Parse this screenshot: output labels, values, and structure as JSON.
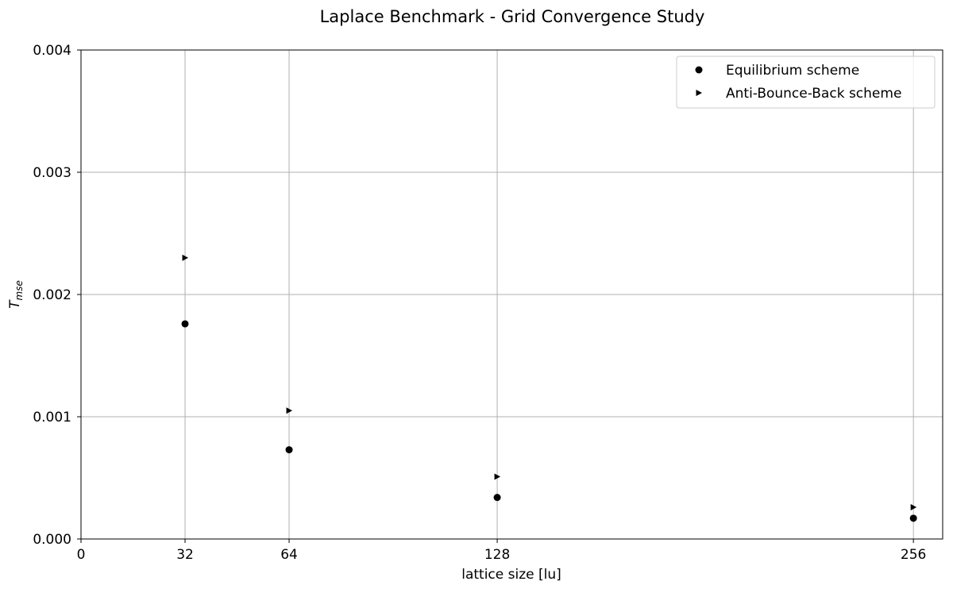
{
  "chart_data": {
    "type": "scatter",
    "title": "Laplace Benchmark - Grid Convergence Study",
    "xlabel": "lattice size [lu]",
    "ylabel": "T_mse",
    "ylabel_main": "T",
    "ylabel_sub": "mse",
    "xlim": [
      0,
      265
    ],
    "ylim": [
      0,
      0.004
    ],
    "x_ticks": [
      0,
      32,
      64,
      128,
      256
    ],
    "x_tick_labels": [
      "0",
      "32",
      "64",
      "128",
      "256"
    ],
    "y_ticks": [
      0,
      0.001,
      0.002,
      0.003,
      0.004
    ],
    "y_tick_labels": [
      "0.000",
      "0.001",
      "0.002",
      "0.003",
      "0.004"
    ],
    "grid": true,
    "legend_position": "top-right",
    "series": [
      {
        "name": "Equilibrium scheme",
        "marker": "circle",
        "color": "#000000",
        "x": [
          32,
          64,
          128,
          256
        ],
        "y": [
          0.00176,
          0.00073,
          0.00034,
          0.00017
        ]
      },
      {
        "name": "Anti-Bounce-Back scheme",
        "marker": "triangle-right",
        "color": "#000000",
        "x": [
          32,
          64,
          128,
          256
        ],
        "y": [
          0.0023,
          0.00105,
          0.00051,
          0.00026
        ]
      }
    ]
  }
}
